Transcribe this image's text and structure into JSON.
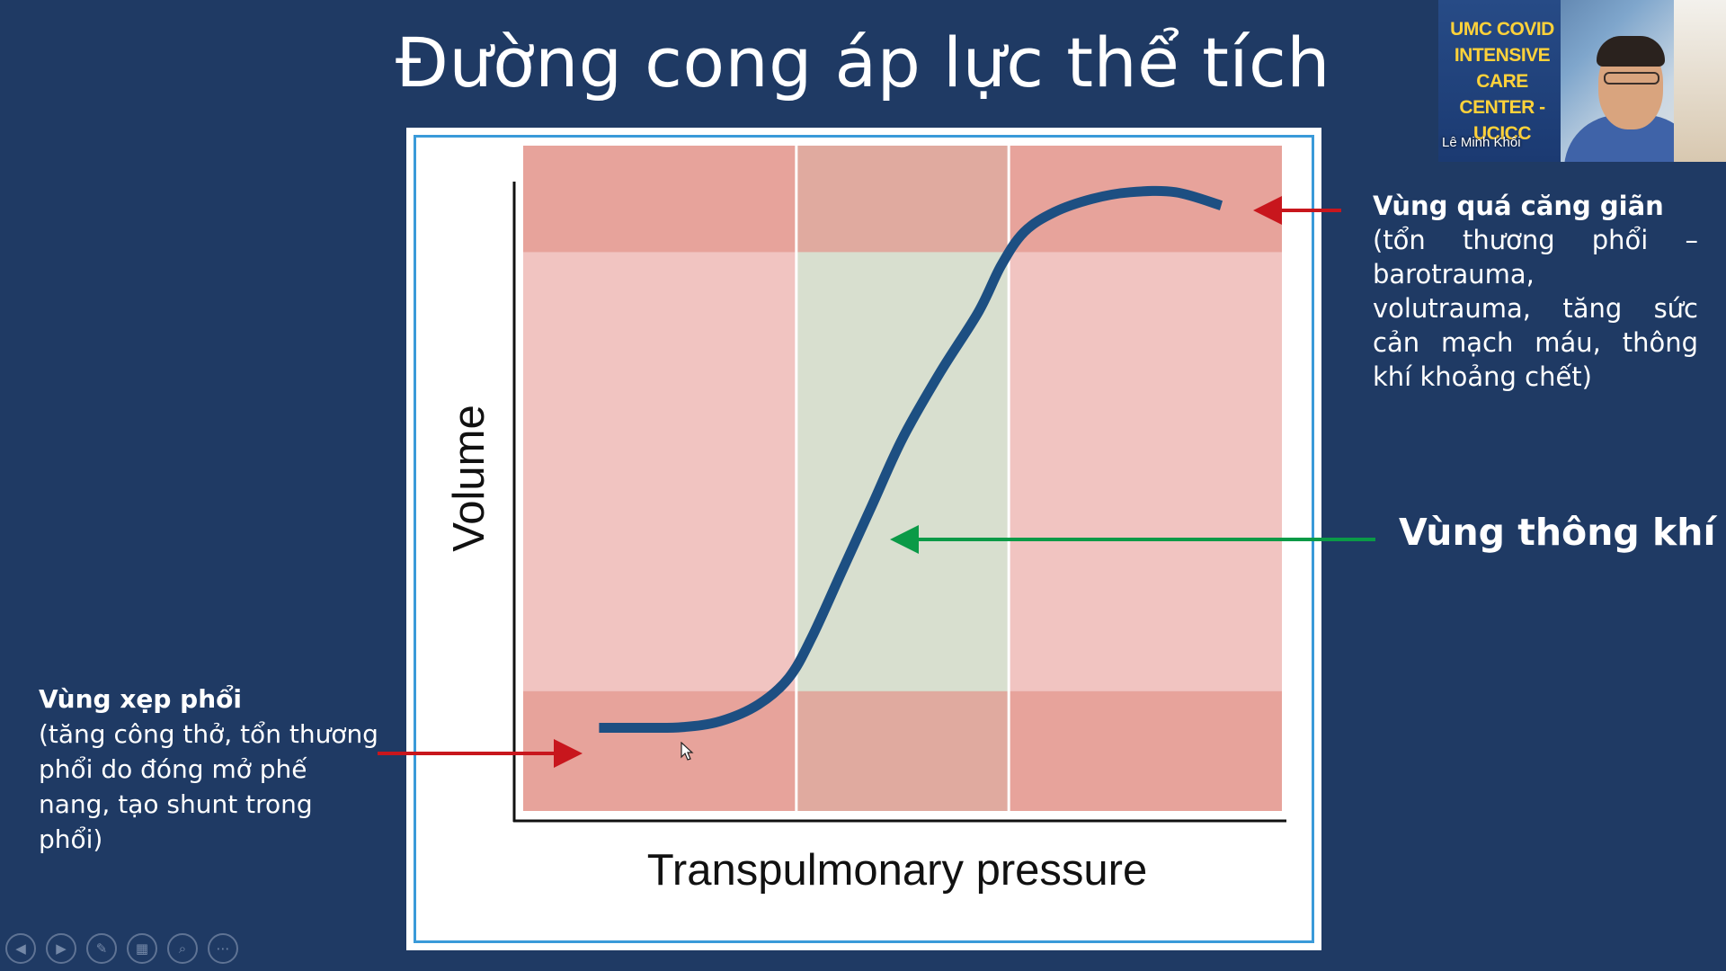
{
  "slide": {
    "title": "Đường cong áp lực thể tích"
  },
  "chart_data": {
    "type": "line",
    "title": "",
    "xlabel": "Transpulmonary pressure",
    "ylabel": "Volume",
    "x_range": [
      0,
      100
    ],
    "y_range": [
      0,
      100
    ],
    "zones": {
      "x_bands": [
        {
          "name": "left",
          "from": 0,
          "to": 36,
          "color": "#f1c4c1"
        },
        {
          "name": "middle",
          "from": 36,
          "to": 64,
          "color": "#d8dfcf"
        },
        {
          "name": "right",
          "from": 64,
          "to": 100,
          "color": "#f1c4c1"
        }
      ],
      "y_bands": [
        {
          "name": "bottom",
          "from": 0,
          "to": 18,
          "color": "#e3958c"
        },
        {
          "name": "top",
          "from": 84,
          "to": 100,
          "color": "#e3958c"
        }
      ]
    },
    "series": [
      {
        "color": "#1d4f82",
        "x": [
          10,
          16,
          21,
          26,
          31,
          35,
          38,
          42,
          46,
          50,
          55,
          60,
          63,
          66,
          70,
          75,
          80,
          86,
          92
        ],
        "y": [
          12.5,
          12.5,
          12.6,
          13.5,
          16,
          20,
          26,
          36,
          46,
          56,
          66,
          75,
          82,
          87,
          90,
          92,
          93,
          93,
          91
        ]
      }
    ],
    "grid": false,
    "legend": "none"
  },
  "annotations": {
    "overdistension": {
      "title": "Vùng quá căng giãn",
      "description": "(tổn thương phổi – barotrauma, volutrauma, tăng sức cản mạch máu, thông khí khoảng chết)",
      "arrow_color": "#c8161d"
    },
    "ventilation": {
      "title": "Vùng thông khí",
      "arrow_color": "#0a9a47"
    },
    "atelectasis": {
      "title": "Vùng xẹp phổi",
      "description": "(tăng công thở, tổn thương phổi do đóng mở phế nang, tạo shunt trong phổi)",
      "arrow_color": "#c8161d"
    }
  },
  "webcam": {
    "banner": "UMC COVID INTENSIVE CARE CENTER - UCICC",
    "participant_name": "Lê Minh Khôi"
  },
  "nav_toolbar": {
    "buttons": [
      {
        "name": "previous-slide-button",
        "icon": "arrow-left-icon",
        "glyph": "◀"
      },
      {
        "name": "next-slide-button",
        "icon": "arrow-right-icon",
        "glyph": "▶"
      },
      {
        "name": "pen-button",
        "icon": "pen-icon",
        "glyph": "✎"
      },
      {
        "name": "slides-grid-button",
        "icon": "grid-icon",
        "glyph": "▦"
      },
      {
        "name": "zoom-button",
        "icon": "magnifier-icon",
        "glyph": "⌕"
      },
      {
        "name": "more-button",
        "icon": "ellipsis-icon",
        "glyph": "⋯"
      }
    ]
  },
  "colors": {
    "background": "#1f3a64",
    "chart_border": "#3a9ad9"
  }
}
